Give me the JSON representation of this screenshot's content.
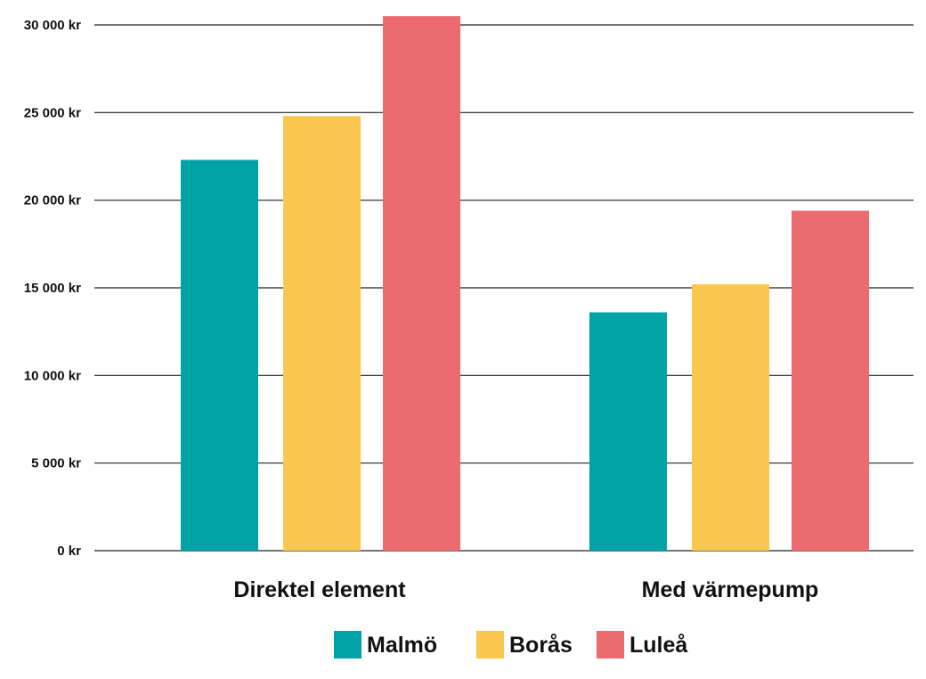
{
  "chart_data": {
    "type": "bar",
    "categories": [
      "Direktel element",
      "Med värmepump"
    ],
    "series": [
      {
        "name": "Malmö",
        "color": "#00A3A5",
        "values": [
          22300,
          13600
        ]
      },
      {
        "name": "Borås",
        "color": "#F9C74F",
        "values": [
          24800,
          15200
        ]
      },
      {
        "name": "Luleå",
        "color": "#EB6B6F",
        "values": [
          30500,
          19400
        ]
      }
    ],
    "ylim": [
      0,
      30000
    ],
    "yticks": [
      {
        "value": 0,
        "label": "0 kr"
      },
      {
        "value": 5000,
        "label": "5 000 kr"
      },
      {
        "value": 10000,
        "label": "10 000 kr"
      },
      {
        "value": 15000,
        "label": "15 000 kr"
      },
      {
        "value": 20000,
        "label": "20 000 kr"
      },
      {
        "value": 25000,
        "label": "25 000 kr"
      },
      {
        "value": 30000,
        "label": "30 000 kr"
      }
    ],
    "grid": true,
    "legend_position": "bottom",
    "title": "",
    "xlabel": "",
    "ylabel": ""
  }
}
